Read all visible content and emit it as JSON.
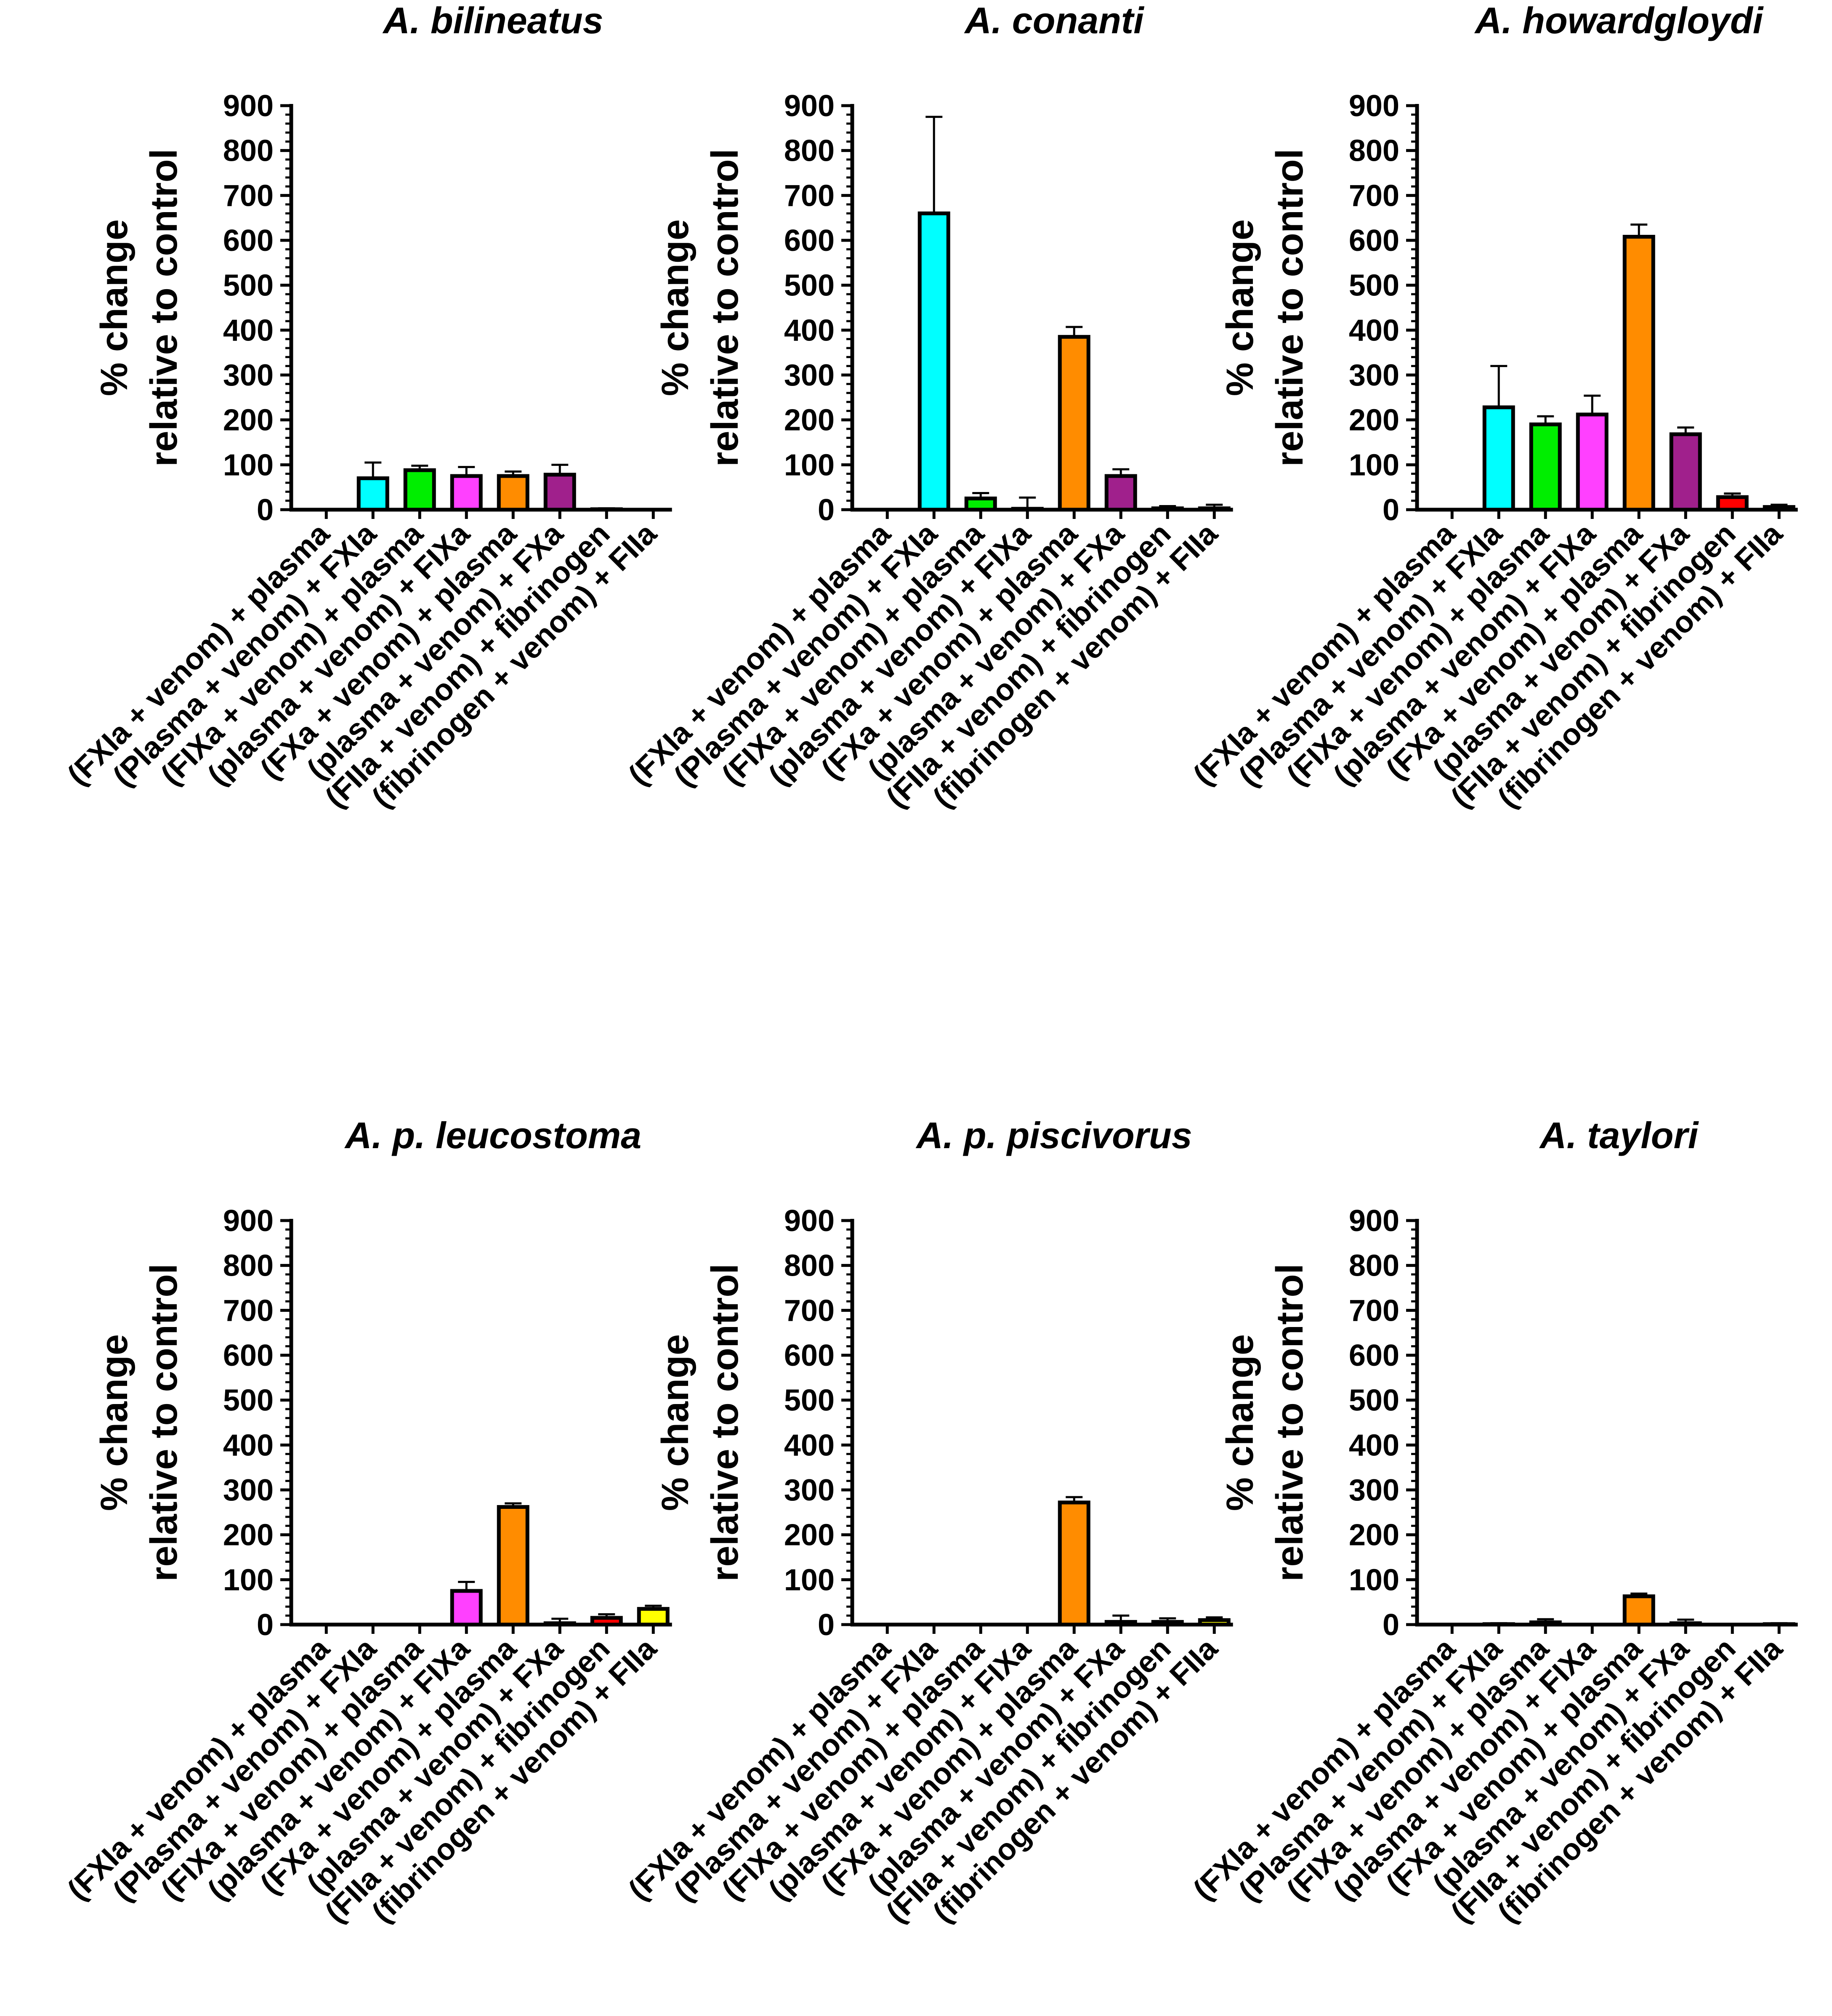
{
  "figure": {
    "ylabel_line1": "% change",
    "ylabel_line2": "relative to control"
  },
  "chart_data": [
    {
      "type": "bar",
      "title": "A. bilineatus",
      "categories": [
        "(FXIa + venom) + plasma",
        "(Plasma + venom) + FXIa",
        "(FIXa + venom) + plasma",
        "(plasma + venom) + FIXa",
        "(FXa + venom) + plasma",
        "(plasma + venom) + FXa",
        "(FIIa + venom) + fibrinogen",
        "(fibrinogen + venom) + FIIa"
      ],
      "values": [
        0,
        70,
        88,
        75,
        75,
        78,
        1,
        0
      ],
      "errors": [
        0,
        35,
        10,
        20,
        10,
        22,
        2,
        0
      ],
      "colors": [
        "#00FFFF",
        "#00FFFF",
        "#00EE00",
        "#FF40FF",
        "#FF8C00",
        "#A0208C",
        "#FF0000",
        "#FFFF00"
      ],
      "yticks": [
        "0",
        "100",
        "200",
        "300",
        "400",
        "500",
        "600",
        "700",
        "800",
        "900"
      ],
      "ylim": [
        0,
        900
      ],
      "ylabel": "% change relative to control"
    },
    {
      "type": "bar",
      "title": "A. conanti",
      "categories": [
        "(FXIa + venom) + plasma",
        "(Plasma + venom) + FXIa",
        "(FIXa + venom) + plasma",
        "(plasma + venom) + FIXa",
        "(FXa + venom) + plasma",
        "(plasma + venom) + FXa",
        "(FIIa + venom) + fibrinogen",
        "(fibrinogen + venom) + FIIa"
      ],
      "values": [
        0,
        660,
        25,
        2,
        385,
        75,
        3,
        3
      ],
      "errors": [
        0,
        215,
        12,
        25,
        22,
        15,
        5,
        8
      ],
      "colors": [
        "#00FFFF",
        "#00FFFF",
        "#00EE00",
        "#FF40FF",
        "#FF8C00",
        "#A0208C",
        "#FF0000",
        "#FFFF00"
      ],
      "yticks": [
        "0",
        "100",
        "200",
        "300",
        "400",
        "500",
        "600",
        "700",
        "800",
        "900"
      ],
      "ylim": [
        0,
        900
      ],
      "ylabel": "% change relative to control"
    },
    {
      "type": "bar",
      "title": "A. howardgloydi",
      "categories": [
        "(FXIa + venom) + plasma",
        "(Plasma + venom) + FXIa",
        "(FIXa + venom) + plasma",
        "(plasma + venom) + FIXa",
        "(FXa + venom) + plasma",
        "(plasma + venom) + FXa",
        "(FIIa + venom) + fibrinogen",
        "(fibrinogen + venom) + FIIa"
      ],
      "values": [
        0,
        228,
        190,
        212,
        608,
        168,
        28,
        6
      ],
      "errors": [
        0,
        92,
        18,
        42,
        27,
        15,
        8,
        5
      ],
      "colors": [
        "#00FFFF",
        "#00FFFF",
        "#00EE00",
        "#FF40FF",
        "#FF8C00",
        "#A0208C",
        "#FF0000",
        "#FFFF00"
      ],
      "yticks": [
        "0",
        "100",
        "200",
        "300",
        "400",
        "500",
        "600",
        "700",
        "800",
        "900"
      ],
      "ylim": [
        0,
        900
      ],
      "ylabel": "% change relative to control"
    },
    {
      "type": "bar",
      "title": "A. p. leucostoma",
      "categories": [
        "(FXIa + venom) + plasma",
        "(Plasma + venom) + FXIa",
        "(FIXa + venom) + plasma",
        "(plasma + venom) + FIXa",
        "(FXa + venom) + plasma",
        "(plasma + venom) + FXa",
        "(FIIa + venom) + fibrinogen",
        "(fibrinogen + venom) + FIIa"
      ],
      "values": [
        0,
        0,
        0,
        75,
        262,
        3,
        15,
        35
      ],
      "errors": [
        0,
        0,
        0,
        20,
        8,
        10,
        8,
        7
      ],
      "colors": [
        "#00FFFF",
        "#00FFFF",
        "#00EE00",
        "#FF40FF",
        "#FF8C00",
        "#A0208C",
        "#FF0000",
        "#FFFF00"
      ],
      "yticks": [
        "0",
        "100",
        "200",
        "300",
        "400",
        "500",
        "600",
        "700",
        "800",
        "900"
      ],
      "ylim": [
        0,
        900
      ],
      "ylabel": "% change relative to control"
    },
    {
      "type": "bar",
      "title": "A. p. piscivorus",
      "categories": [
        "(FXIa + venom) + plasma",
        "(Plasma + venom) + FXIa",
        "(FIXa + venom) + plasma",
        "(plasma + venom) + FIXa",
        "(FXa + venom) + plasma",
        "(plasma + venom) + FXa",
        "(FIIa + venom) + fibrinogen",
        "(fibrinogen + venom) + FIIa"
      ],
      "values": [
        0,
        0,
        0,
        0,
        272,
        6,
        6,
        10
      ],
      "errors": [
        0,
        0,
        0,
        0,
        12,
        14,
        8,
        6
      ],
      "colors": [
        "#00FFFF",
        "#00FFFF",
        "#00EE00",
        "#FF40FF",
        "#FF8C00",
        "#A0208C",
        "#FF0000",
        "#FFFF00"
      ],
      "yticks": [
        "0",
        "100",
        "200",
        "300",
        "400",
        "500",
        "600",
        "700",
        "800",
        "900"
      ],
      "ylim": [
        0,
        900
      ],
      "ylabel": "% change relative to control"
    },
    {
      "type": "bar",
      "title": "A. taylori",
      "categories": [
        "(FXIa + venom) + plasma",
        "(Plasma + venom) + FXIa",
        "(FIXa + venom) + plasma",
        "(plasma + venom) + FIXa",
        "(FXa + venom) + plasma",
        "(plasma + venom) + FXa",
        "(FIIa + venom) + fibrinogen",
        "(fibrinogen + venom) + FIIa"
      ],
      "values": [
        0,
        1,
        5,
        0,
        63,
        3,
        0,
        1
      ],
      "errors": [
        0,
        2,
        7,
        0,
        6,
        8,
        1,
        2
      ],
      "colors": [
        "#00FFFF",
        "#00FFFF",
        "#00EE00",
        "#FF40FF",
        "#FF8C00",
        "#A0208C",
        "#FF0000",
        "#FFFF00"
      ],
      "yticks": [
        "0",
        "100",
        "200",
        "300",
        "400",
        "500",
        "600",
        "700",
        "800",
        "900"
      ],
      "ylim": [
        0,
        900
      ],
      "ylabel": "% change relative to control"
    }
  ]
}
